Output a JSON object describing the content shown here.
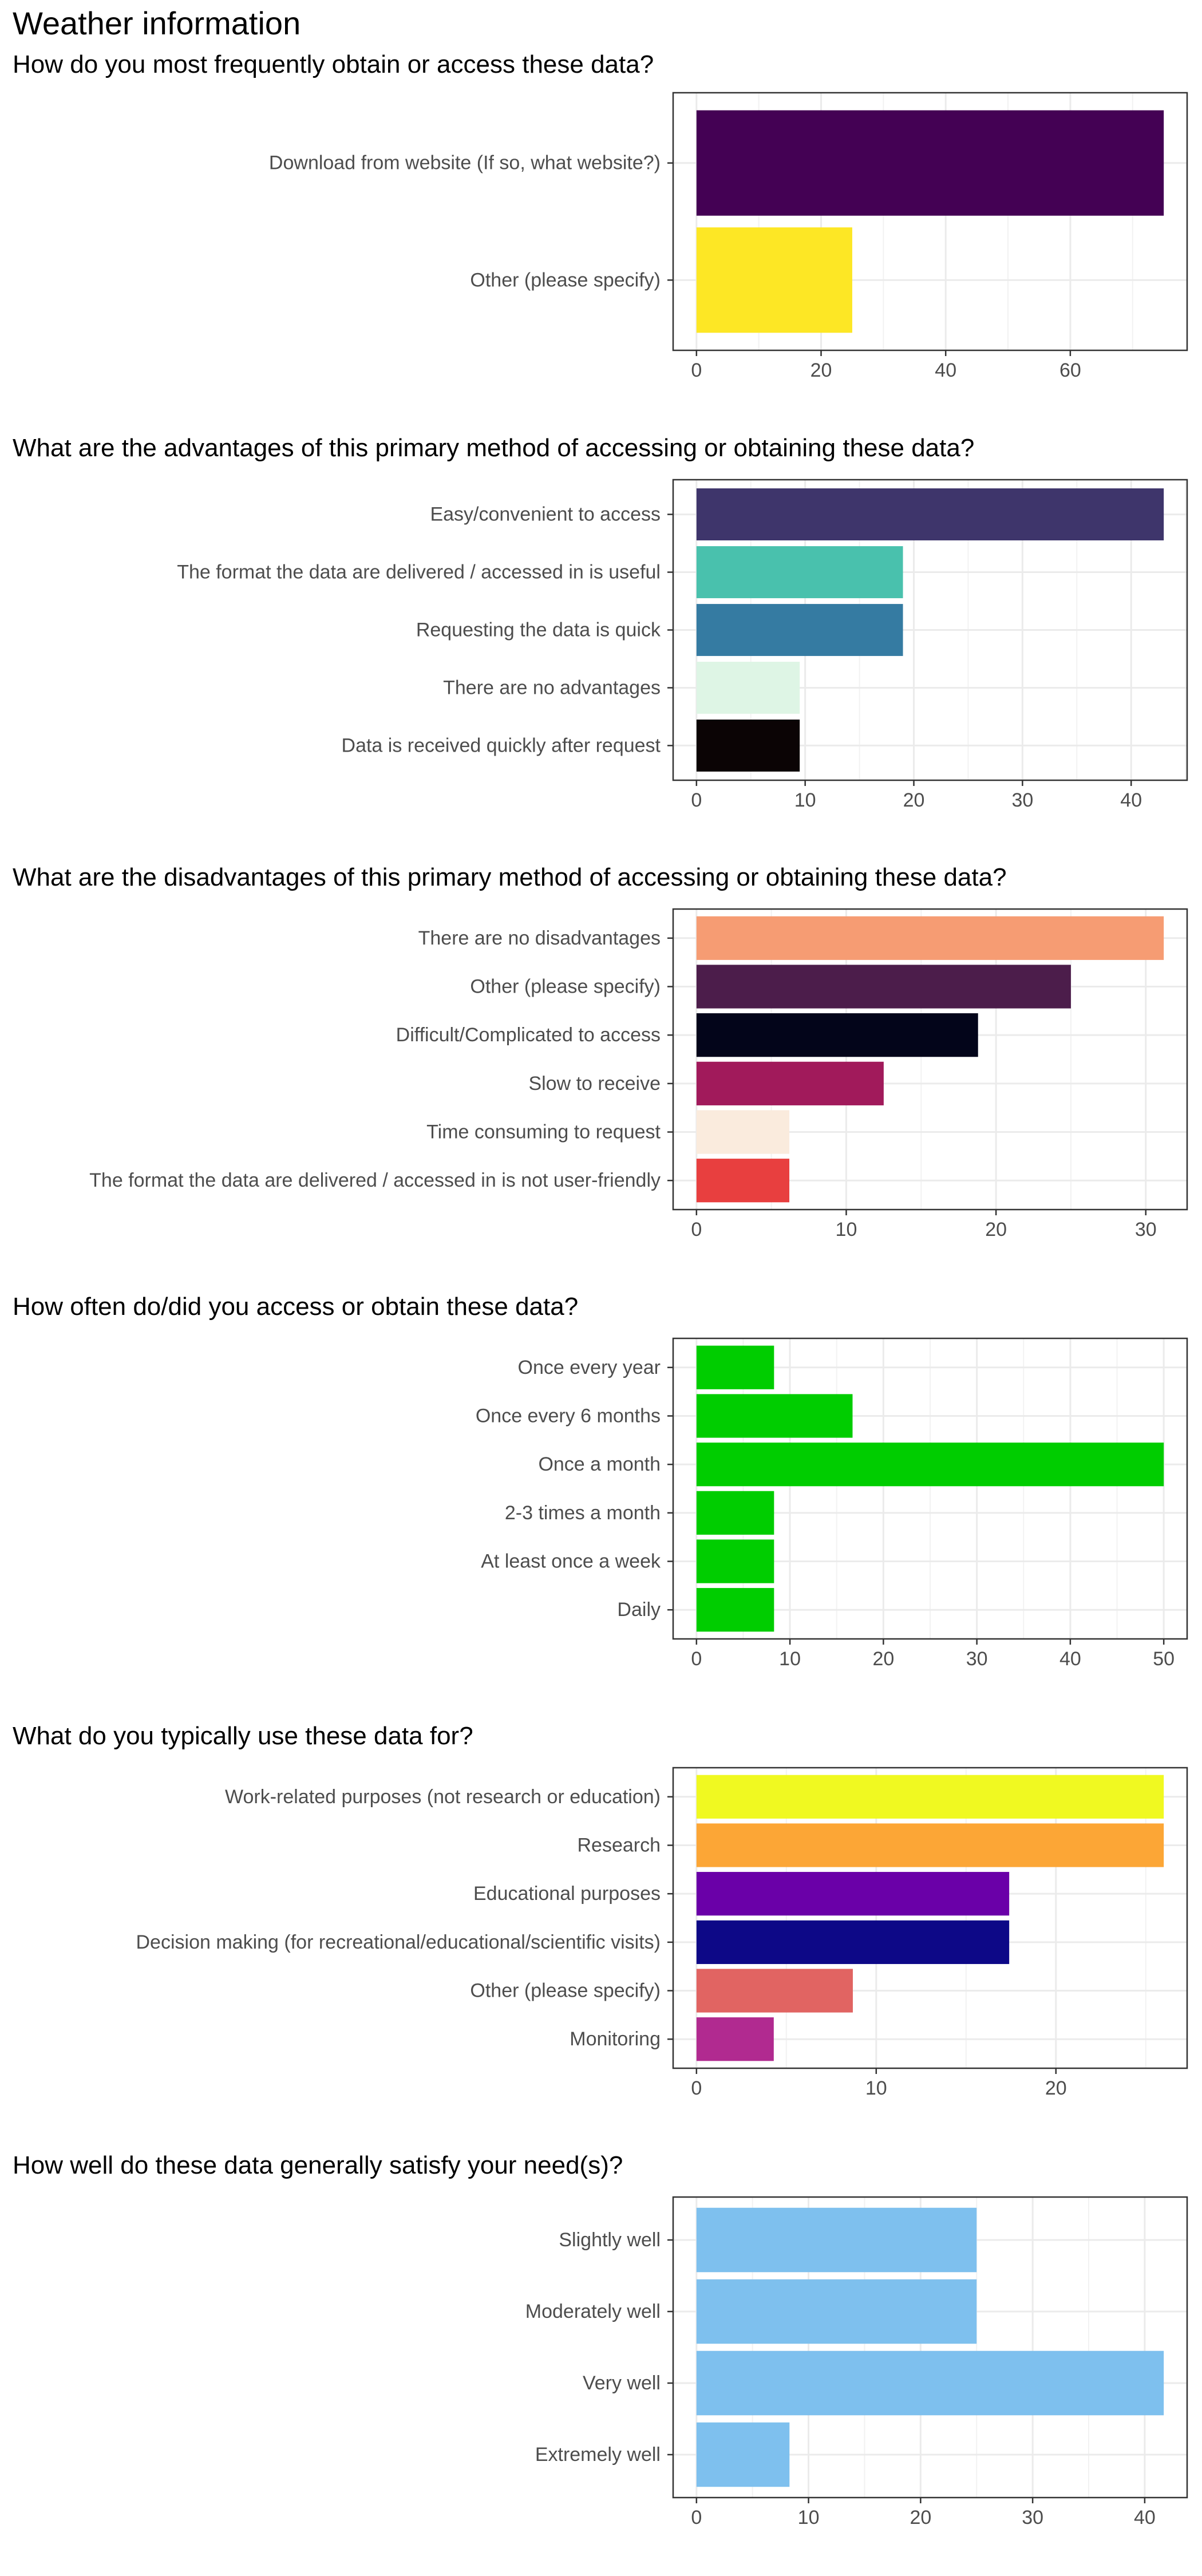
{
  "page_title": "Weather information",
  "chart_data": [
    {
      "type": "bar",
      "orientation": "horizontal",
      "title": "How do you most frequently obtain or access these data?",
      "categories": [
        "Download from website (If so, what website?)",
        "Other (please specify)"
      ],
      "values": [
        75,
        25
      ],
      "colors": [
        "#440154",
        "#FDE725"
      ],
      "xlim": [
        -3.75,
        78.75
      ],
      "xticks": [
        0,
        20,
        40,
        60
      ],
      "xtick_labels": [
        "0",
        "20",
        "40",
        "60"
      ],
      "grid": true
    },
    {
      "type": "bar",
      "orientation": "horizontal",
      "title": "What are the advantages of this primary method of accessing or obtaining these data?",
      "categories": [
        "Easy/convenient to access",
        "The format the data are delivered / accessed in is useful",
        "Requesting the data is quick",
        "There are no advantages",
        "Data is received quickly after request"
      ],
      "values": [
        43,
        19,
        19,
        9.5,
        9.5
      ],
      "colors": [
        "#3E356B",
        "#49C1AD",
        "#357BA2",
        "#DEF5E5",
        "#0B0405"
      ],
      "xlim": [
        -2.15,
        45.15
      ],
      "xticks": [
        0,
        10,
        20,
        30,
        40
      ],
      "xtick_labels": [
        "0",
        "10",
        "20",
        "30",
        "40"
      ],
      "grid": true
    },
    {
      "type": "bar",
      "orientation": "horizontal",
      "title": "What are the disadvantages of this primary method of accessing or obtaining these data?",
      "categories": [
        "There are no disadvantages",
        "Other (please specify)",
        "Difficult/Complicated to access",
        "Slow to receive",
        "Time consuming to request",
        "The format the data are delivered / accessed in is not user-friendly"
      ],
      "values": [
        31.2,
        25,
        18.8,
        12.5,
        6.2,
        6.2
      ],
      "colors": [
        "#F69C73",
        "#4C1D4B",
        "#03051A",
        "#A11A5B",
        "#FAEBDD",
        "#E83F3F"
      ],
      "xlim": [
        -1.56,
        32.76
      ],
      "xticks": [
        0,
        10,
        20,
        30
      ],
      "xtick_labels": [
        "0",
        "10",
        "20",
        "30"
      ],
      "grid": true
    },
    {
      "type": "bar",
      "orientation": "horizontal",
      "title": "How often do/did you access or obtain these data?",
      "categories": [
        "Once every year",
        "Once every 6 months",
        "Once a month",
        "2-3 times a month",
        "At least once a week",
        "Daily"
      ],
      "values": [
        8.3,
        16.7,
        50,
        8.3,
        8.3,
        8.3
      ],
      "colors": [
        "#00CD00",
        "#00CD00",
        "#00CD00",
        "#00CD00",
        "#00CD00",
        "#00CD00"
      ],
      "xlim": [
        -2.5,
        52.5
      ],
      "xticks": [
        0,
        10,
        20,
        30,
        40,
        50
      ],
      "xtick_labels": [
        "0",
        "10",
        "20",
        "30",
        "40",
        "50"
      ],
      "grid": true
    },
    {
      "type": "bar",
      "orientation": "horizontal",
      "title": "What do you typically use these data for?",
      "categories": [
        "Work-related purposes (not research or education)",
        "Research",
        "Educational purposes",
        "Decision making (for recreational/educational/scientific visits)",
        "Other (please specify)",
        "Monitoring"
      ],
      "values": [
        26,
        26,
        17.4,
        17.4,
        8.7,
        4.3
      ],
      "colors": [
        "#F0F921",
        "#FCA636",
        "#6A00A8",
        "#0D0887",
        "#E16462",
        "#B12A90"
      ],
      "xlim": [
        -1.3,
        27.3
      ],
      "xticks": [
        0,
        10,
        20
      ],
      "xtick_labels": [
        "0",
        "10",
        "20"
      ],
      "grid": true
    },
    {
      "type": "bar",
      "orientation": "horizontal",
      "title": "How well do these data generally satisfy your need(s)?",
      "categories": [
        "Slightly well",
        "Moderately well",
        "Very well",
        "Extremely well"
      ],
      "values": [
        25,
        25,
        41.7,
        8.3
      ],
      "colors": [
        "#7EC0EE",
        "#7EC0EE",
        "#7EC0EE",
        "#7EC0EE"
      ],
      "xlim": [
        -2.085,
        43.785
      ],
      "xticks": [
        0,
        10,
        20,
        30,
        40
      ],
      "xtick_labels": [
        "0",
        "10",
        "20",
        "30",
        "40"
      ],
      "grid": true
    }
  ]
}
